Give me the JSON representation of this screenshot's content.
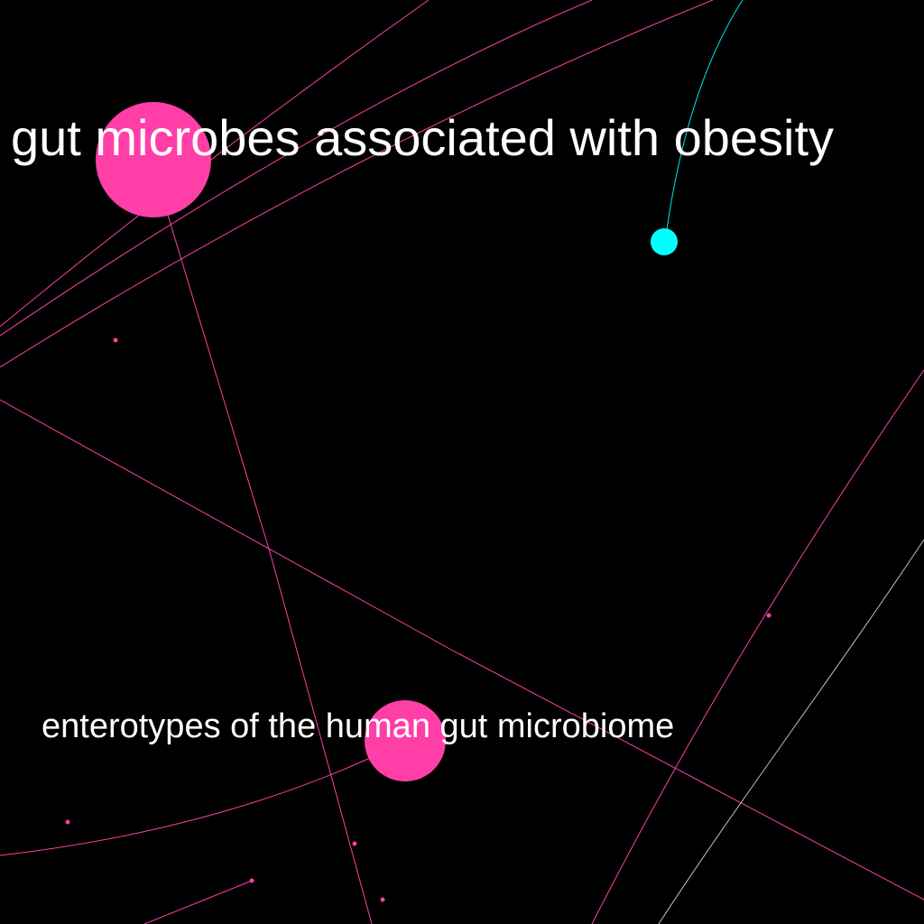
{
  "graph": {
    "background": "#000000",
    "edge_color_pink": "#ff3ea8",
    "edge_color_cyan": "#00e5ee",
    "edge_color_gray": "#bfbfbf",
    "node_color_pink": "#ff3ea8",
    "node_color_cyan": "#00ffff",
    "labels": [
      "gut microbes associated with obesity",
      "enterotypes of the human gut microbiome"
    ]
  }
}
